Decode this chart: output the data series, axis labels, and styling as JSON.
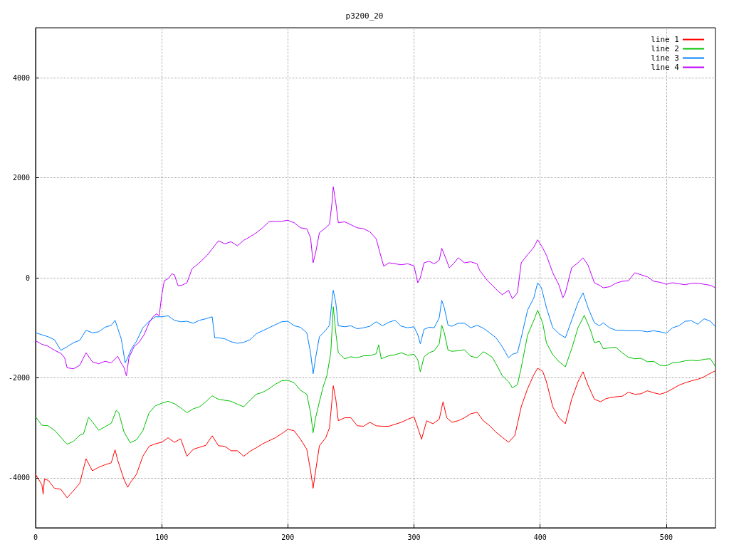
{
  "chart_data": {
    "type": "line",
    "title": "p3200_20",
    "xlim": [
      0,
      539
    ],
    "xticks": [
      0,
      100,
      200,
      300,
      400,
      500
    ],
    "ylim": [
      -5000,
      5000
    ],
    "yticks": [
      -4000,
      -2000,
      0,
      2000,
      4000
    ],
    "grid": true,
    "legend": "top right",
    "marker": "none",
    "line_style": "solid",
    "series": [
      {
        "name": "line 1",
        "color": "#ff0000",
        "x": [
          0,
          5,
          6,
          7,
          10,
          15,
          20,
          25,
          30,
          35,
          40,
          45,
          50,
          55,
          60,
          63,
          65,
          70,
          73,
          75,
          80,
          85,
          90,
          95,
          100,
          105,
          110,
          115,
          118,
          120,
          125,
          130,
          135,
          140,
          145,
          150,
          155,
          160,
          165,
          170,
          175,
          180,
          185,
          190,
          195,
          200,
          205,
          210,
          215,
          218,
          220,
          222,
          225,
          230,
          233,
          236,
          238,
          240,
          245,
          250,
          255,
          260,
          265,
          270,
          275,
          280,
          285,
          290,
          295,
          300,
          303,
          306,
          310,
          315,
          320,
          323,
          326,
          330,
          335,
          340,
          345,
          350,
          355,
          360,
          365,
          370,
          375,
          380,
          385,
          390,
          395,
          398,
          402,
          405,
          410,
          415,
          420,
          425,
          430,
          434,
          438,
          443,
          448,
          452,
          455,
          460,
          465,
          470,
          475,
          480,
          485,
          490,
          495,
          500,
          505,
          510,
          515,
          520,
          525,
          530,
          535,
          539
        ],
        "values": [
          -3930,
          -4140,
          -4330,
          -4030,
          -4050,
          -4210,
          -4230,
          -4400,
          -4260,
          -4110,
          -3620,
          -3860,
          -3790,
          -3740,
          -3700,
          -3440,
          -3640,
          -4030,
          -4190,
          -4100,
          -3930,
          -3570,
          -3370,
          -3320,
          -3290,
          -3200,
          -3290,
          -3220,
          -3430,
          -3570,
          -3430,
          -3390,
          -3350,
          -3160,
          -3360,
          -3370,
          -3460,
          -3460,
          -3570,
          -3470,
          -3400,
          -3320,
          -3260,
          -3200,
          -3120,
          -3030,
          -3060,
          -3230,
          -3430,
          -3860,
          -4210,
          -3860,
          -3360,
          -3200,
          -3000,
          -2160,
          -2430,
          -2860,
          -2800,
          -2800,
          -2960,
          -2970,
          -2890,
          -2960,
          -2970,
          -2970,
          -2930,
          -2890,
          -2830,
          -2780,
          -3000,
          -3230,
          -2860,
          -2920,
          -2830,
          -2480,
          -2800,
          -2890,
          -2860,
          -2800,
          -2720,
          -2690,
          -2860,
          -2960,
          -3090,
          -3190,
          -3290,
          -3150,
          -2580,
          -2220,
          -1940,
          -1810,
          -1870,
          -2080,
          -2580,
          -2800,
          -2920,
          -2430,
          -2080,
          -1880,
          -2150,
          -2430,
          -2480,
          -2420,
          -2400,
          -2380,
          -2370,
          -2290,
          -2330,
          -2320,
          -2260,
          -2300,
          -2330,
          -2290,
          -2220,
          -2150,
          -2100,
          -2060,
          -2030,
          -1980,
          -1910,
          -1860
        ]
      },
      {
        "name": "line 2",
        "color": "#00c000",
        "x": [
          0,
          5,
          10,
          15,
          20,
          25,
          30,
          35,
          38,
          42,
          45,
          50,
          55,
          60,
          64,
          66,
          70,
          75,
          80,
          85,
          90,
          95,
          100,
          105,
          110,
          115,
          120,
          125,
          130,
          135,
          140,
          145,
          150,
          155,
          160,
          165,
          170,
          175,
          180,
          185,
          190,
          195,
          200,
          205,
          210,
          215,
          218,
          220,
          222,
          225,
          228,
          231,
          234,
          236,
          238,
          240,
          245,
          250,
          255,
          260,
          265,
          270,
          272,
          274,
          280,
          285,
          290,
          295,
          300,
          303,
          305,
          308,
          312,
          316,
          320,
          322,
          324,
          327,
          330,
          335,
          340,
          345,
          350,
          355,
          358,
          362,
          365,
          370,
          375,
          378,
          382,
          385,
          390,
          395,
          398,
          402,
          405,
          410,
          415,
          420,
          425,
          430,
          435,
          440,
          443,
          447,
          450,
          455,
          460,
          465,
          470,
          475,
          480,
          485,
          490,
          495,
          500,
          505,
          510,
          515,
          520,
          525,
          530,
          535,
          539
        ],
        "values": [
          -2780,
          -2950,
          -2960,
          -3050,
          -3190,
          -3330,
          -3270,
          -3150,
          -3120,
          -2790,
          -2880,
          -3050,
          -2980,
          -2910,
          -2650,
          -2700,
          -3080,
          -3300,
          -3240,
          -3060,
          -2700,
          -2560,
          -2510,
          -2470,
          -2520,
          -2600,
          -2700,
          -2620,
          -2580,
          -2480,
          -2360,
          -2430,
          -2450,
          -2470,
          -2530,
          -2580,
          -2450,
          -2330,
          -2290,
          -2220,
          -2130,
          -2060,
          -2050,
          -2100,
          -2250,
          -2330,
          -2700,
          -3100,
          -2800,
          -2480,
          -2180,
          -1950,
          -1500,
          -580,
          -1100,
          -1500,
          -1620,
          -1580,
          -1600,
          -1560,
          -1560,
          -1520,
          -1340,
          -1620,
          -1560,
          -1540,
          -1500,
          -1550,
          -1530,
          -1640,
          -1880,
          -1580,
          -1500,
          -1460,
          -1320,
          -950,
          -1100,
          -1450,
          -1470,
          -1460,
          -1440,
          -1570,
          -1600,
          -1480,
          -1520,
          -1590,
          -1720,
          -1960,
          -2080,
          -2200,
          -2140,
          -1800,
          -1150,
          -850,
          -650,
          -900,
          -1300,
          -1540,
          -1680,
          -1780,
          -1420,
          -1000,
          -750,
          -1050,
          -1300,
          -1270,
          -1420,
          -1400,
          -1390,
          -1500,
          -1590,
          -1620,
          -1610,
          -1680,
          -1670,
          -1750,
          -1760,
          -1700,
          -1690,
          -1660,
          -1650,
          -1660,
          -1630,
          -1620,
          -1780
        ]
      },
      {
        "name": "line 3",
        "color": "#0080ff",
        "x": [
          0,
          5,
          10,
          15,
          20,
          25,
          30,
          35,
          40,
          45,
          50,
          55,
          60,
          63,
          65,
          68,
          71,
          73,
          76,
          80,
          85,
          90,
          95,
          100,
          105,
          110,
          115,
          120,
          125,
          130,
          135,
          140,
          142,
          145,
          150,
          155,
          160,
          165,
          170,
          175,
          180,
          185,
          190,
          195,
          200,
          205,
          210,
          215,
          218,
          220,
          222,
          225,
          230,
          233,
          235,
          236,
          238,
          240,
          245,
          250,
          255,
          260,
          265,
          270,
          275,
          280,
          285,
          290,
          295,
          300,
          303,
          305,
          308,
          312,
          316,
          320,
          322,
          324,
          327,
          330,
          335,
          340,
          345,
          350,
          355,
          360,
          365,
          370,
          375,
          378,
          382,
          385,
          390,
          395,
          398,
          401,
          405,
          410,
          415,
          420,
          425,
          430,
          434,
          438,
          443,
          447,
          450,
          455,
          460,
          465,
          470,
          475,
          480,
          485,
          490,
          495,
          500,
          505,
          510,
          515,
          520,
          525,
          530,
          535,
          539
        ],
        "values": [
          -1100,
          -1140,
          -1180,
          -1240,
          -1450,
          -1380,
          -1300,
          -1250,
          -1050,
          -1100,
          -1080,
          -990,
          -950,
          -850,
          -1000,
          -1230,
          -1700,
          -1600,
          -1420,
          -1270,
          -1000,
          -870,
          -780,
          -780,
          -760,
          -850,
          -880,
          -870,
          -910,
          -850,
          -820,
          -780,
          -1200,
          -1200,
          -1220,
          -1280,
          -1310,
          -1290,
          -1240,
          -1120,
          -1060,
          -1000,
          -940,
          -880,
          -870,
          -960,
          -990,
          -1100,
          -1500,
          -1920,
          -1600,
          -1180,
          -1050,
          -950,
          -450,
          -250,
          -500,
          -960,
          -980,
          -960,
          -1020,
          -1000,
          -970,
          -880,
          -960,
          -890,
          -850,
          -970,
          -1000,
          -980,
          -1140,
          -1320,
          -1030,
          -990,
          -1000,
          -800,
          -450,
          -600,
          -950,
          -970,
          -910,
          -910,
          -1000,
          -950,
          -1010,
          -1100,
          -1200,
          -1380,
          -1600,
          -1530,
          -1500,
          -1200,
          -650,
          -400,
          -100,
          -200,
          -600,
          -1000,
          -1120,
          -1200,
          -850,
          -500,
          -300,
          -600,
          -900,
          -960,
          -900,
          -1000,
          -1050,
          -1050,
          -1060,
          -1060,
          -1060,
          -1080,
          -1060,
          -1080,
          -1110,
          -1000,
          -960,
          -870,
          -860,
          -930,
          -820,
          -870,
          -980
        ]
      },
      {
        "name": "line 4",
        "color": "#c000ff",
        "x": [
          0,
          5,
          10,
          15,
          20,
          23,
          25,
          30,
          35,
          40,
          45,
          50,
          55,
          60,
          65,
          68,
          70,
          72,
          74,
          78,
          82,
          86,
          90,
          93,
          96,
          98,
          100,
          102,
          105,
          108,
          110,
          113,
          116,
          120,
          124,
          128,
          132,
          136,
          140,
          145,
          150,
          155,
          160,
          165,
          170,
          175,
          180,
          185,
          190,
          195,
          200,
          205,
          210,
          215,
          218,
          220,
          222,
          225,
          230,
          233,
          235,
          236,
          238,
          240,
          245,
          250,
          255,
          260,
          265,
          270,
          273,
          276,
          280,
          285,
          290,
          295,
          300,
          303,
          305,
          308,
          312,
          316,
          320,
          322,
          325,
          328,
          332,
          335,
          340,
          345,
          350,
          352,
          358,
          362,
          366,
          370,
          375,
          378,
          382,
          385,
          390,
          395,
          398,
          402,
          405,
          410,
          415,
          418,
          420,
          425,
          430,
          434,
          438,
          443,
          447,
          450,
          455,
          460,
          465,
          470,
          475,
          480,
          485,
          490,
          495,
          500,
          505,
          510,
          515,
          520,
          525,
          530,
          535,
          539
        ],
        "values": [
          -1260,
          -1330,
          -1370,
          -1450,
          -1510,
          -1600,
          -1800,
          -1820,
          -1750,
          -1500,
          -1680,
          -1720,
          -1670,
          -1700,
          -1570,
          -1710,
          -1790,
          -1960,
          -1600,
          -1380,
          -1290,
          -1140,
          -900,
          -780,
          -720,
          -760,
          -350,
          -60,
          -20,
          80,
          60,
          -160,
          -150,
          -100,
          180,
          260,
          350,
          450,
          580,
          740,
          680,
          720,
          640,
          750,
          820,
          900,
          1000,
          1120,
          1130,
          1130,
          1150,
          1100,
          1000,
          980,
          800,
          300,
          500,
          900,
          1000,
          1070,
          1500,
          1820,
          1500,
          1100,
          1120,
          1060,
          1000,
          980,
          920,
          780,
          500,
          230,
          300,
          280,
          260,
          280,
          240,
          -100,
          0,
          300,
          330,
          280,
          350,
          590,
          400,
          200,
          300,
          400,
          300,
          320,
          280,
          150,
          -50,
          -150,
          -250,
          -340,
          -250,
          -420,
          -300,
          300,
          460,
          610,
          760,
          600,
          450,
          100,
          -150,
          -400,
          -300,
          200,
          300,
          400,
          250,
          -100,
          -150,
          -200,
          -180,
          -110,
          -70,
          -60,
          100,
          60,
          20,
          -70,
          -90,
          -130,
          -100,
          -120,
          -140,
          -110,
          -110,
          -130,
          -150,
          -200
        ]
      }
    ]
  }
}
